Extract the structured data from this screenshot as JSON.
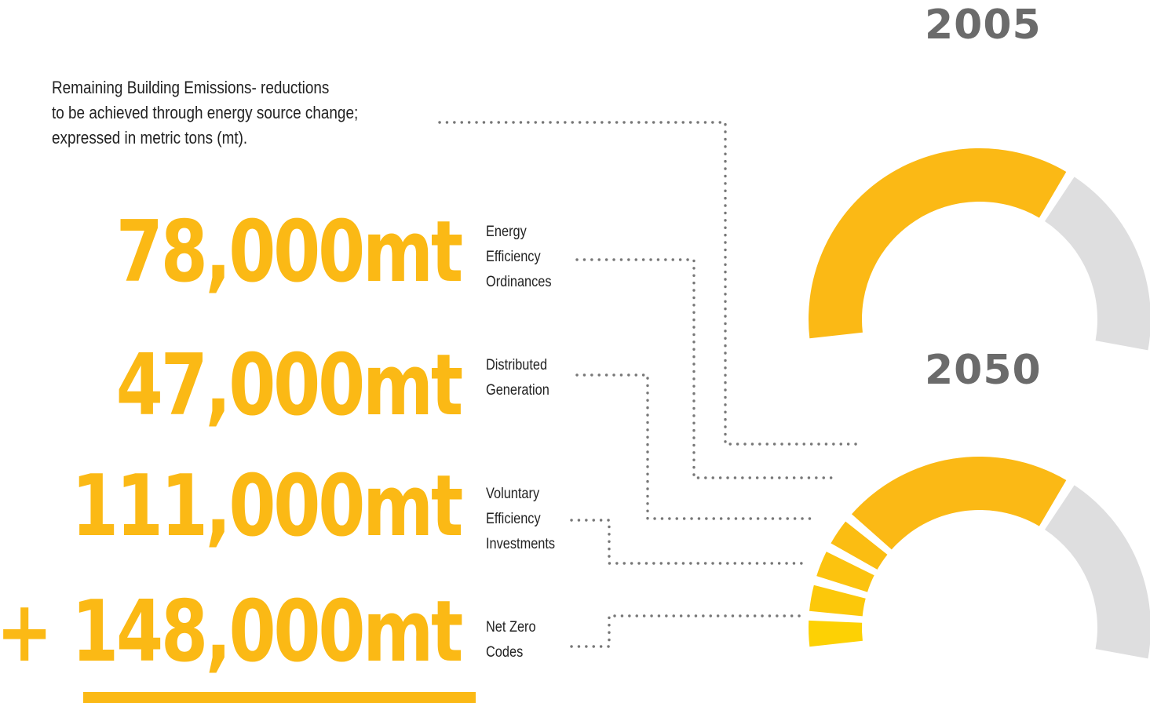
{
  "years": {
    "start": "2005",
    "end": "2050"
  },
  "intro_text": "Remaining Building Emissions- reductions\nto be achieved through energy source change;\nexpressed in metric tons (mt).",
  "rows": [
    {
      "amount": "78,000mt",
      "label": "Energy\nEfficiency\nOrdinances"
    },
    {
      "amount": "47,000mt",
      "label": "Distributed\nGeneration"
    },
    {
      "amount": "111,000mt",
      "label": "Voluntary\nEfficiency\nInvestments"
    },
    {
      "amount": "+ 148,000mt",
      "label": "Net Zero\nCodes"
    }
  ],
  "colors": {
    "accent": "#fbb915",
    "remaining": "#dededf",
    "gradient": [
      "#fbb915",
      "#fbbd12",
      "#fcc30f",
      "#fcc80a",
      "#fdd104"
    ],
    "connector": "#777777",
    "year_text": "#6b6b6b"
  },
  "chart_data": {
    "type": "gauge",
    "charts": [
      {
        "year": "2005",
        "segments": [
          {
            "role": "remaining_building_emissions",
            "share": 0.65
          },
          {
            "role": "remainder",
            "share": 0.35
          }
        ]
      },
      {
        "year": "2050",
        "segments": [
          {
            "role": "net_zero_codes",
            "share": 0.06
          },
          {
            "role": "voluntary_efficiency_investments",
            "share": 0.06
          },
          {
            "role": "distributed_generation",
            "share": 0.06
          },
          {
            "role": "energy_efficiency_ordinances",
            "share": 0.06
          },
          {
            "role": "remaining_building_emissions",
            "share": 0.41
          },
          {
            "role": "remainder",
            "share": 0.35
          }
        ]
      }
    ]
  }
}
